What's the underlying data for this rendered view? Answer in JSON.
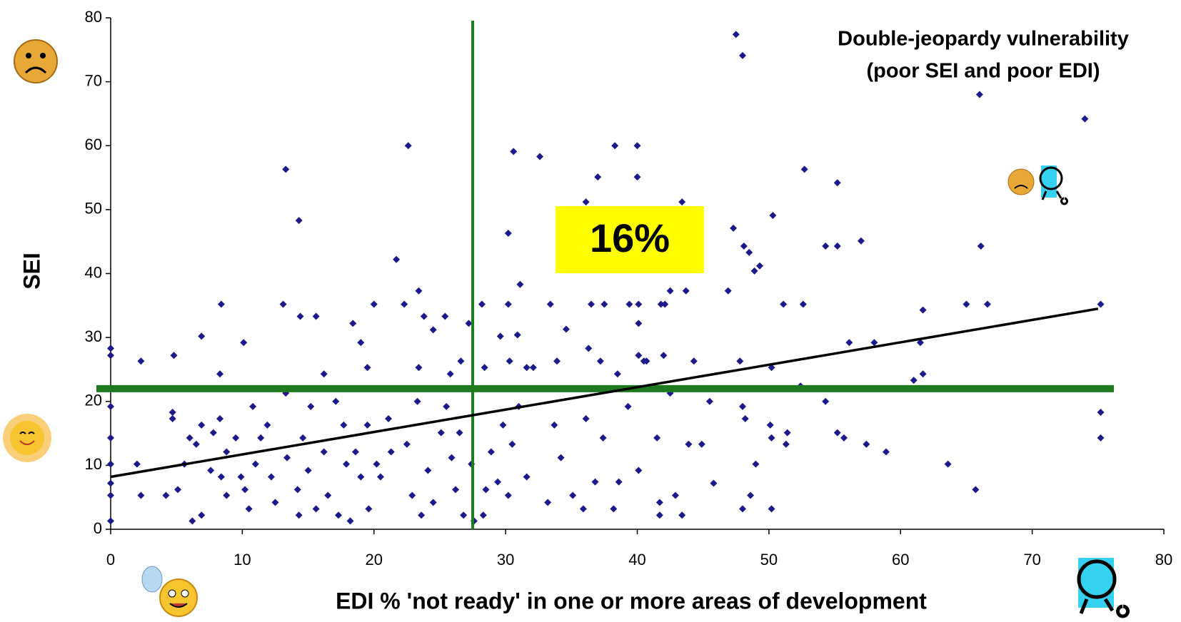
{
  "chart_data": {
    "type": "scatter",
    "x_label": "EDI % 'not ready' in one or more areas of development",
    "y_label": "SEI",
    "annotations": [
      "Double-jeopardy vulnerability",
      "(poor SEI and poor EDI)"
    ],
    "quadrant_label": "16%",
    "xlim": [
      0,
      80
    ],
    "ylim": [
      0,
      80
    ],
    "xticks": [
      0,
      10,
      20,
      30,
      40,
      50,
      60,
      70,
      80
    ],
    "yticks": [
      0,
      10,
      20,
      30,
      40,
      50,
      60,
      70,
      80
    ],
    "color": "#1a1a8c",
    "trendline": {
      "color": "#000000",
      "x": [
        0,
        75
      ],
      "values": [
        8.2,
        34.5
      ]
    },
    "reference_lines": {
      "color": "#1f7a1f",
      "x": 27.5,
      "y": 22
    },
    "x": [
      47.5,
      48,
      66,
      74,
      22.6,
      38.3,
      40,
      30.6,
      32.6,
      13.3,
      52.7,
      37,
      40,
      55.2,
      36.1,
      43.4,
      50.3,
      14.3,
      47.3,
      30.2,
      57,
      48.1,
      54.3,
      55.2,
      66.1,
      48.5,
      21.7,
      49.3,
      48.9,
      31.1,
      23.4,
      42.5,
      43.7,
      46.9,
      8.4,
      13.1,
      20,
      22.3,
      28.2,
      30.2,
      33.4,
      36.5,
      37.5,
      39.4,
      40.1,
      41.8,
      42.1,
      51.1,
      52.6,
      65,
      66.6,
      75.2,
      61.7,
      14.4,
      15.6,
      23.8,
      25.4,
      18.4,
      27.2,
      40.1,
      24.5,
      34.6,
      6.9,
      10.1,
      19,
      29.6,
      30.9,
      56.1,
      58,
      61.5,
      0,
      0,
      4.8,
      36.3,
      40.1,
      2.3,
      26.6,
      30.3,
      31.6,
      32.1,
      33.9,
      37.2,
      40.5,
      40.7,
      42,
      44.3,
      47.8,
      19.5,
      23.4,
      28.4,
      50.2,
      61.7,
      8.3,
      16.2,
      25.8,
      38.5,
      52.4,
      0,
      0,
      0,
      0,
      0,
      0,
      2,
      2.3,
      4.2,
      4.7,
      4.7,
      5.1,
      5.6,
      6.2,
      6,
      6.5,
      6.9,
      6.9,
      7.6,
      7.8,
      8.3,
      8.4,
      8.8,
      8.8,
      9.5,
      9.9,
      10.2,
      10.5,
      10.8,
      11,
      11.4,
      11.9,
      12.2,
      12.5,
      13.3,
      13.4,
      14.2,
      14.3,
      14.6,
      15,
      15.2,
      15.6,
      16.2,
      16.5,
      17.1,
      17.3,
      17.7,
      17.9,
      18.2,
      18.6,
      19,
      19.5,
      19.6,
      20.2,
      20.5,
      21.1,
      21.3,
      22.5,
      22.9,
      23.3,
      23.6,
      24.1,
      24.5,
      25.1,
      25.5,
      25.9,
      26.2,
      26.5,
      26.8,
      27.4,
      27.6,
      28.3,
      28.5,
      28.9,
      29.4,
      29.8,
      30.2,
      30.5,
      31,
      31.6,
      33.2,
      33.7,
      34.2,
      35.1,
      35.9,
      36.1,
      36.8,
      37.4,
      38.2,
      38.6,
      39.3,
      40.1,
      41.5,
      41.7,
      41.7,
      42.5,
      42.9,
      43.4,
      43.9,
      44.9,
      45.5,
      45.8,
      48,
      48.2,
      48.6,
      48,
      49,
      50.1,
      50.2,
      50.2,
      51.3,
      51.4,
      54.3,
      55.2,
      55.7,
      57.4,
      58.9,
      63.6,
      65.7,
      75.2,
      75.2,
      61
    ],
    "values": [
      77.4,
      74.1,
      68,
      64.2,
      60,
      60,
      60,
      59.1,
      58.3,
      56.3,
      56.3,
      55.1,
      55.1,
      54.2,
      51.2,
      51.2,
      49.1,
      48.3,
      47.1,
      46.3,
      45.1,
      44.3,
      44.3,
      44.3,
      44.3,
      43.3,
      42.2,
      41.2,
      40.4,
      38.3,
      37.3,
      37.3,
      37.3,
      37.3,
      35.2,
      35.2,
      35.2,
      35.2,
      35.2,
      35.2,
      35.2,
      35.2,
      35.2,
      35.2,
      35.2,
      35.2,
      35.2,
      35.2,
      35.2,
      35.2,
      35.2,
      35.2,
      34.3,
      33.3,
      33.3,
      33.3,
      33.3,
      32.2,
      32.2,
      32.2,
      31.2,
      31.3,
      30.2,
      29.2,
      29.2,
      30.2,
      30.4,
      29.2,
      29.2,
      29.2,
      28.3,
      27.2,
      27.2,
      28.3,
      27.2,
      26.3,
      26.3,
      26.3,
      25.3,
      25.3,
      26.3,
      26.3,
      26.3,
      26.3,
      27.2,
      26.3,
      26.3,
      25.3,
      25.3,
      25.3,
      25.3,
      24.3,
      24.3,
      24.3,
      24.3,
      24.3,
      22.4,
      19.2,
      14.3,
      10.2,
      7.2,
      5.3,
      1.3,
      10.2,
      5.3,
      5.3,
      18.3,
      17.3,
      6.2,
      10.2,
      1.3,
      14.3,
      13.3,
      16.3,
      2.2,
      9.2,
      15.1,
      17.3,
      8.2,
      5.3,
      12.1,
      14.3,
      8.2,
      6.2,
      3.2,
      19.2,
      10.2,
      14.3,
      16.3,
      8.2,
      4.2,
      21.3,
      11.2,
      6.2,
      2.2,
      14.3,
      9.2,
      19.2,
      3.2,
      12.1,
      5.3,
      20,
      2.2,
      16.3,
      10.2,
      1.3,
      12.1,
      8.2,
      16.3,
      3.2,
      10.2,
      8.2,
      17.3,
      12.1,
      13.3,
      5.3,
      20,
      2.2,
      9.2,
      4.2,
      15.1,
      19.2,
      11.2,
      6.2,
      15.1,
      2.2,
      10.2,
      1.3,
      2.2,
      6.2,
      12.1,
      7.4,
      16.3,
      5.3,
      13.3,
      19.2,
      8.2,
      4.2,
      16.3,
      11.2,
      5.3,
      3.2,
      17.3,
      7.4,
      14.3,
      3.2,
      7.4,
      19.2,
      9.2,
      14.3,
      4.2,
      2.2,
      21.3,
      5.3,
      2.2,
      13.3,
      13.3,
      20,
      7.2,
      19.2,
      17.3,
      5.3,
      3.2,
      10.2,
      16.3,
      14.3,
      3.2,
      13.3,
      15.1,
      20,
      15.1,
      14.3,
      13.3,
      12.1,
      10.2,
      6.2,
      18.3,
      14.3,
      23.3
    ]
  }
}
